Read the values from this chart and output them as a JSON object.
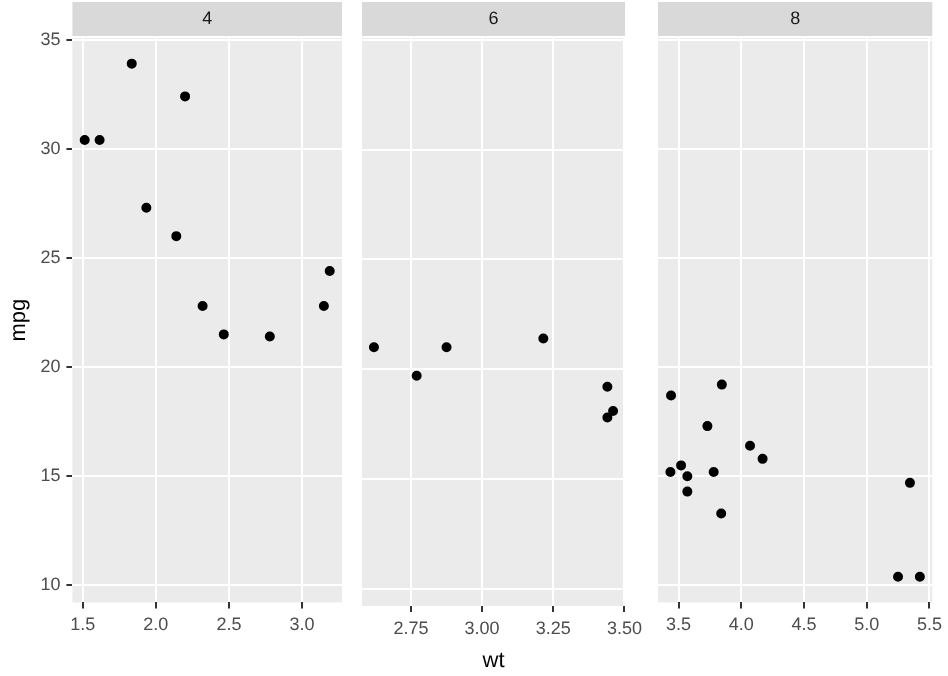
{
  "chart_data": [
    {
      "type": "scatter",
      "title": "4",
      "ylabel": "mpg",
      "color": "#000000",
      "marker": "circle",
      "grid": true,
      "x": [
        2.32,
        3.19,
        3.15,
        2.2,
        1.615,
        1.835,
        2.465,
        1.935,
        2.14,
        1.513,
        2.78
      ],
      "values": [
        22.8,
        24.4,
        22.8,
        32.4,
        30.4,
        33.9,
        21.5,
        27.3,
        26.0,
        30.4,
        21.4
      ],
      "xlim": [
        1.429,
        3.274
      ],
      "xticks": [
        1.5,
        {
          "value": 2,
          "label": "2.0"
        },
        2.5,
        {
          "value": 3,
          "label": "3.0"
        }
      ],
      "ylim": [
        9.225,
        35.075
      ],
      "yticks": [
        10,
        15,
        20,
        25,
        30,
        35
      ]
    },
    {
      "type": "scatter",
      "title": "6",
      "xlabel": "wt",
      "color": "#000000",
      "marker": "circle",
      "grid": true,
      "tick_labels": "x",
      "x": [
        2.62,
        2.875,
        3.215,
        3.46,
        3.44,
        3.44,
        2.77
      ],
      "values": [
        21.0,
        21.0,
        21.4,
        18.1,
        19.2,
        17.8,
        19.7
      ],
      "xlim": [
        2.578,
        3.502
      ],
      "xticks": [
        2.75,
        {
          "value": 3,
          "label": "3.00"
        },
        3.25,
        {
          "value": 3.5,
          "label": "3.50"
        }
      ],
      "ylim": [
        9.225,
        35.075
      ],
      "yticks": [
        10,
        15,
        20,
        25,
        30,
        35
      ]
    },
    {
      "type": "scatter",
      "title": "8",
      "color": "#000000",
      "marker": "circle",
      "grid": true,
      "tick_labels": "x",
      "x": [
        3.44,
        3.57,
        4.07,
        3.73,
        3.78,
        5.25,
        5.424,
        5.345,
        3.52,
        3.435,
        3.84,
        3.845,
        4.17,
        3.57
      ],
      "values": [
        18.7,
        14.3,
        16.4,
        17.3,
        15.2,
        10.4,
        10.4,
        14.7,
        15.5,
        15.2,
        13.3,
        19.2,
        15.8,
        15.0
      ],
      "xlim": [
        3.336,
        5.523
      ],
      "xticks": [
        3.5,
        {
          "value": 4,
          "label": "4.0"
        },
        4.5,
        {
          "value": 5,
          "label": "5.0"
        },
        5.5
      ],
      "ylim": [
        9.225,
        35.075
      ],
      "yticks": [
        10,
        15,
        20,
        25,
        30,
        35
      ]
    }
  ]
}
